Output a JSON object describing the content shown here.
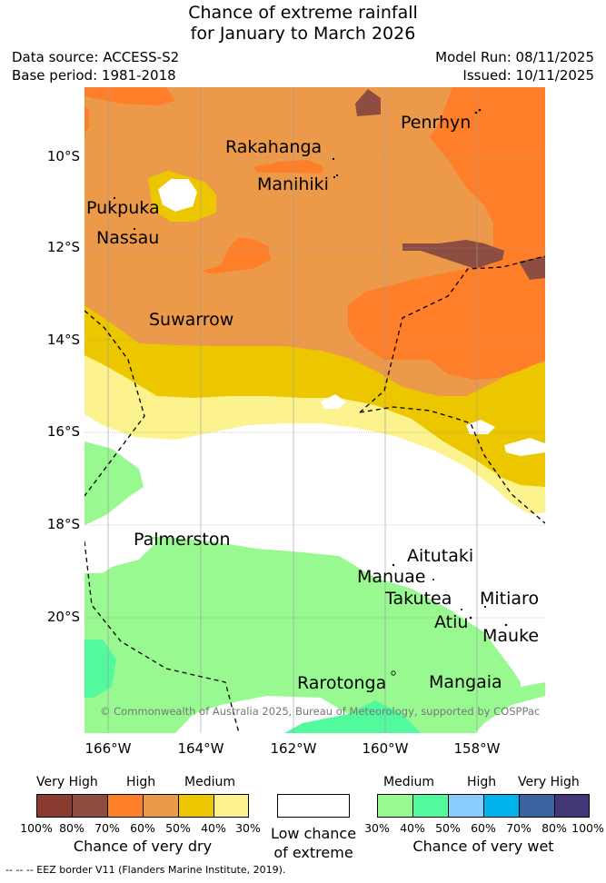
{
  "header": {
    "title_line1": "Chance of extreme rainfall",
    "title_line2": "for January to March 2026",
    "data_source": "Data source: ACCESS-S2",
    "base_period": "Base period: 1981-2018",
    "model_run": "Model Run: 08/11/2025",
    "issued": "Issued: 10/11/2025"
  },
  "map": {
    "lat_ticks": [
      "10°S",
      "12°S",
      "14°S",
      "16°S",
      "18°S",
      "20°S"
    ],
    "lon_ticks": [
      "166°W",
      "164°W",
      "162°W",
      "160°W",
      "158°W"
    ],
    "places": {
      "penrhyn": "Penrhyn",
      "rakahanga": "Rakahanga",
      "manihiki": "Manihiki",
      "pukapuka": "Pukpuka",
      "nassau": "Nassau",
      "suwarrow": "Suwarrow",
      "palmerston": "Palmerston",
      "aitutaki": "Aitutaki",
      "manuae": "Manuae",
      "takutea": "Takutea",
      "mitiaro": "Mitiaro",
      "atiu": "Atiu",
      "mauke": "Mauke",
      "rarotonga": "Rarotonga",
      "mangaia": "Mangaia"
    },
    "copyright": "© Commonwealth of Australia 2025, Bureau of Meteorology, supported by COSPPac",
    "colors": {
      "dry_very_high_1": "#8b3a30",
      "dry_very_high_2": "#8d4e41",
      "dry_high_1": "#fe7e2a",
      "dry_high_2": "#ec9a4a",
      "dry_medium_1": "#ecc700",
      "dry_medium_2": "#fcf28e",
      "low": "#ffffff",
      "wet_medium_1": "#98f991",
      "wet_medium_2": "#52f99d",
      "wet_high_1": "#86cdfb",
      "wet_high_2": "#00b3ec",
      "wet_very_high_1": "#3c63a1",
      "wet_very_high_2": "#423878"
    }
  },
  "legend": {
    "dry": {
      "very_high": "Very High",
      "high": "High",
      "medium": "Medium",
      "percents": [
        "100%",
        "80%",
        "70%",
        "60%",
        "50%",
        "40%",
        "30%"
      ],
      "caption": "Chance of very dry"
    },
    "low": {
      "line1": "Low chance",
      "line2": "of extreme"
    },
    "wet": {
      "medium": "Medium",
      "high": "High",
      "very_high": "Very High",
      "percents": [
        "30%",
        "40%",
        "50%",
        "60%",
        "70%",
        "80%",
        "100%"
      ],
      "caption": "Chance of very wet"
    },
    "eez_note": "--  --  -- EEZ border V11 (Flanders Marine Institute, 2019)."
  }
}
